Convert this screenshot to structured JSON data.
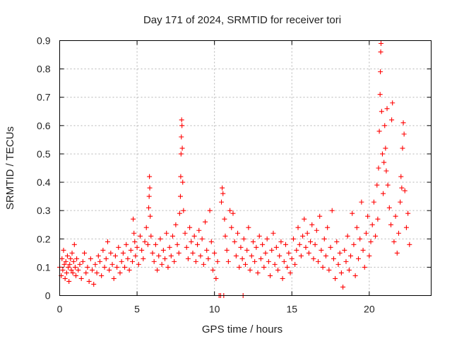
{
  "chart_data": {
    "type": "scatter",
    "title": "Day 171 of 2024, SRMTID for receiver tori",
    "xlabel": "GPS time / hours",
    "ylabel": "SRMTID / TECUs",
    "xlim": [
      0,
      24
    ],
    "ylim": [
      0,
      0.9
    ],
    "grid": true,
    "marker": "plus",
    "color": "#ff0000",
    "x_ticks": [
      0,
      5,
      10,
      15,
      20
    ],
    "x_tick_labels": [
      "0",
      "5",
      "10",
      "15",
      "20"
    ],
    "y_ticks": [
      0,
      0.1,
      0.2,
      0.3,
      0.4,
      0.5,
      0.6,
      0.7,
      0.8,
      0.9
    ],
    "y_tick_labels": [
      "0",
      "0.1",
      "0.2",
      "0.3",
      "0.4",
      "0.5",
      "0.6",
      "0.7",
      "0.8",
      "0.9"
    ],
    "series": [
      {
        "name": "SRMTID",
        "points": [
          [
            0.0,
            0.1
          ],
          [
            0.1,
            0.07
          ],
          [
            0.15,
            0.13
          ],
          [
            0.2,
            0.09
          ],
          [
            0.25,
            0.16
          ],
          [
            0.3,
            0.11
          ],
          [
            0.35,
            0.06
          ],
          [
            0.4,
            0.12
          ],
          [
            0.45,
            0.08
          ],
          [
            0.5,
            0.14
          ],
          [
            0.55,
            0.1
          ],
          [
            0.6,
            0.05
          ],
          [
            0.65,
            0.11
          ],
          [
            0.7,
            0.13
          ],
          [
            0.75,
            0.09
          ],
          [
            0.8,
            0.15
          ],
          [
            0.85,
            0.08
          ],
          [
            0.9,
            0.12
          ],
          [
            0.95,
            0.18
          ],
          [
            1.0,
            0.1
          ],
          [
            1.05,
            0.07
          ],
          [
            1.1,
            0.13
          ],
          [
            1.2,
            0.09
          ],
          [
            1.3,
            0.11
          ],
          [
            1.4,
            0.06
          ],
          [
            1.5,
            0.12
          ],
          [
            1.6,
            0.15
          ],
          [
            1.7,
            0.08
          ],
          [
            1.8,
            0.1
          ],
          [
            1.9,
            0.05
          ],
          [
            2.0,
            0.13
          ],
          [
            2.1,
            0.09
          ],
          [
            2.2,
            0.04
          ],
          [
            2.3,
            0.11
          ],
          [
            2.4,
            0.08
          ],
          [
            2.5,
            0.14
          ],
          [
            2.6,
            0.12
          ],
          [
            2.7,
            0.07
          ],
          [
            2.8,
            0.16
          ],
          [
            2.9,
            0.1
          ],
          [
            3.0,
            0.13
          ],
          [
            3.1,
            0.19
          ],
          [
            3.2,
            0.09
          ],
          [
            3.3,
            0.15
          ],
          [
            3.4,
            0.11
          ],
          [
            3.5,
            0.06
          ],
          [
            3.6,
            0.14
          ],
          [
            3.7,
            0.1
          ],
          [
            3.8,
            0.17
          ],
          [
            3.9,
            0.08
          ],
          [
            4.0,
            0.12
          ],
          [
            4.1,
            0.15
          ],
          [
            4.2,
            0.1
          ],
          [
            4.3,
            0.18
          ],
          [
            4.4,
            0.13
          ],
          [
            4.5,
            0.09
          ],
          [
            4.6,
            0.16
          ],
          [
            4.7,
            0.12
          ],
          [
            4.75,
            0.27
          ],
          [
            4.8,
            0.22
          ],
          [
            4.85,
            0.19
          ],
          [
            4.9,
            0.14
          ],
          [
            5.0,
            0.17
          ],
          [
            5.1,
            0.11
          ],
          [
            5.2,
            0.21
          ],
          [
            5.3,
            0.16
          ],
          [
            5.4,
            0.13
          ],
          [
            5.5,
            0.19
          ],
          [
            5.6,
            0.24
          ],
          [
            5.7,
            0.18
          ],
          [
            5.75,
            0.31
          ],
          [
            5.78,
            0.35
          ],
          [
            5.8,
            0.42
          ],
          [
            5.82,
            0.38
          ],
          [
            5.85,
            0.28
          ],
          [
            5.9,
            0.21
          ],
          [
            6.0,
            0.15
          ],
          [
            6.1,
            0.12
          ],
          [
            6.2,
            0.18
          ],
          [
            6.3,
            0.09
          ],
          [
            6.4,
            0.14
          ],
          [
            6.5,
            0.2
          ],
          [
            6.6,
            0.11
          ],
          [
            6.7,
            0.16
          ],
          [
            6.8,
            0.13
          ],
          [
            6.9,
            0.22
          ],
          [
            7.0,
            0.1
          ],
          [
            7.1,
            0.17
          ],
          [
            7.2,
            0.14
          ],
          [
            7.3,
            0.21
          ],
          [
            7.4,
            0.12
          ],
          [
            7.5,
            0.25
          ],
          [
            7.6,
            0.18
          ],
          [
            7.7,
            0.15
          ],
          [
            7.75,
            0.29
          ],
          [
            7.8,
            0.35
          ],
          [
            7.82,
            0.42
          ],
          [
            7.84,
            0.5
          ],
          [
            7.86,
            0.56
          ],
          [
            7.88,
            0.62
          ],
          [
            7.9,
            0.6
          ],
          [
            7.92,
            0.52
          ],
          [
            7.95,
            0.4
          ],
          [
            8.0,
            0.3
          ],
          [
            8.1,
            0.22
          ],
          [
            8.2,
            0.17
          ],
          [
            8.3,
            0.13
          ],
          [
            8.4,
            0.24
          ],
          [
            8.5,
            0.19
          ],
          [
            8.6,
            0.15
          ],
          [
            8.7,
            0.21
          ],
          [
            8.8,
            0.12
          ],
          [
            8.9,
            0.18
          ],
          [
            9.0,
            0.23
          ],
          [
            9.1,
            0.14
          ],
          [
            9.2,
            0.2
          ],
          [
            9.3,
            0.11
          ],
          [
            9.4,
            0.26
          ],
          [
            9.5,
            0.16
          ],
          [
            9.6,
            0.13
          ],
          [
            9.7,
            0.3
          ],
          [
            9.8,
            0.19
          ],
          [
            9.9,
            0.09
          ],
          [
            10.0,
            0.15
          ],
          [
            10.1,
            0.06
          ],
          [
            10.2,
            0.12
          ],
          [
            10.3,
            0.0
          ],
          [
            10.4,
            0.0
          ],
          [
            10.45,
            0.33
          ],
          [
            10.5,
            0.38
          ],
          [
            10.55,
            0.36
          ],
          [
            10.6,
            0.0
          ],
          [
            10.65,
            0.27
          ],
          [
            10.7,
            0.21
          ],
          [
            10.8,
            0.16
          ],
          [
            10.9,
            0.12
          ],
          [
            11.0,
            0.3
          ],
          [
            11.1,
            0.24
          ],
          [
            11.2,
            0.29
          ],
          [
            11.3,
            0.19
          ],
          [
            11.4,
            0.14
          ],
          [
            11.5,
            0.22
          ],
          [
            11.6,
            0.1
          ],
          [
            11.7,
            0.17
          ],
          [
            11.8,
            0.13
          ],
          [
            11.85,
            0.0
          ],
          [
            11.9,
            0.2
          ],
          [
            12.0,
            0.11
          ],
          [
            12.1,
            0.16
          ],
          [
            12.2,
            0.24
          ],
          [
            12.3,
            0.09
          ],
          [
            12.4,
            0.14
          ],
          [
            12.5,
            0.19
          ],
          [
            12.6,
            0.12
          ],
          [
            12.7,
            0.17
          ],
          [
            12.8,
            0.08
          ],
          [
            12.9,
            0.21
          ],
          [
            13.0,
            0.13
          ],
          [
            13.1,
            0.18
          ],
          [
            13.2,
            0.1
          ],
          [
            13.3,
            0.15
          ],
          [
            13.4,
            0.2
          ],
          [
            13.5,
            0.12
          ],
          [
            13.6,
            0.07
          ],
          [
            13.7,
            0.16
          ],
          [
            13.8,
            0.22
          ],
          [
            13.9,
            0.11
          ],
          [
            14.0,
            0.17
          ],
          [
            14.1,
            0.09
          ],
          [
            14.2,
            0.14
          ],
          [
            14.3,
            0.19
          ],
          [
            14.4,
            0.06
          ],
          [
            14.5,
            0.12
          ],
          [
            14.6,
            0.18
          ],
          [
            14.7,
            0.1
          ],
          [
            14.8,
            0.15
          ],
          [
            14.9,
            0.08
          ],
          [
            15.0,
            0.13
          ],
          [
            15.1,
            0.2
          ],
          [
            15.2,
            0.11
          ],
          [
            15.3,
            0.16
          ],
          [
            15.4,
            0.24
          ],
          [
            15.5,
            0.18
          ],
          [
            15.6,
            0.14
          ],
          [
            15.7,
            0.21
          ],
          [
            15.8,
            0.27
          ],
          [
            15.9,
            0.17
          ],
          [
            16.0,
            0.22
          ],
          [
            16.1,
            0.15
          ],
          [
            16.2,
            0.19
          ],
          [
            16.3,
            0.25
          ],
          [
            16.4,
            0.13
          ],
          [
            16.5,
            0.18
          ],
          [
            16.6,
            0.23
          ],
          [
            16.7,
            0.12
          ],
          [
            16.8,
            0.28
          ],
          [
            16.9,
            0.16
          ],
          [
            17.0,
            0.1
          ],
          [
            17.1,
            0.2
          ],
          [
            17.2,
            0.14
          ],
          [
            17.3,
            0.24
          ],
          [
            17.4,
            0.09
          ],
          [
            17.5,
            0.17
          ],
          [
            17.6,
            0.3
          ],
          [
            17.7,
            0.13
          ],
          [
            17.8,
            0.06
          ],
          [
            17.9,
            0.19
          ],
          [
            18.0,
            0.11
          ],
          [
            18.1,
            0.15
          ],
          [
            18.2,
            0.08
          ],
          [
            18.3,
            0.03
          ],
          [
            18.4,
            0.16
          ],
          [
            18.5,
            0.12
          ],
          [
            18.6,
            0.21
          ],
          [
            18.7,
            0.09
          ],
          [
            18.8,
            0.14
          ],
          [
            18.9,
            0.29
          ],
          [
            19.0,
            0.18
          ],
          [
            19.1,
            0.07
          ],
          [
            19.2,
            0.24
          ],
          [
            19.3,
            0.13
          ],
          [
            19.4,
            0.2
          ],
          [
            19.5,
            0.33
          ],
          [
            19.6,
            0.16
          ],
          [
            19.7,
            0.1
          ],
          [
            19.8,
            0.22
          ],
          [
            19.9,
            0.28
          ],
          [
            20.0,
            0.14
          ],
          [
            20.1,
            0.19
          ],
          [
            20.2,
            0.25
          ],
          [
            20.3,
            0.33
          ],
          [
            20.4,
            0.21
          ],
          [
            20.5,
            0.39
          ],
          [
            20.55,
            0.27
          ],
          [
            20.6,
            0.45
          ],
          [
            20.65,
            0.58
          ],
          [
            20.7,
            0.71
          ],
          [
            20.72,
            0.79
          ],
          [
            20.74,
            0.86
          ],
          [
            20.76,
            0.89
          ],
          [
            20.8,
            0.65
          ],
          [
            20.85,
            0.5
          ],
          [
            20.9,
            0.36
          ],
          [
            20.95,
            0.47
          ],
          [
            21.0,
            0.6
          ],
          [
            21.05,
            0.52
          ],
          [
            21.1,
            0.44
          ],
          [
            21.15,
            0.66
          ],
          [
            21.2,
            0.39
          ],
          [
            21.3,
            0.31
          ],
          [
            21.4,
            0.25
          ],
          [
            21.45,
            0.62
          ],
          [
            21.5,
            0.68
          ],
          [
            21.6,
            0.19
          ],
          [
            21.7,
            0.28
          ],
          [
            21.8,
            0.15
          ],
          [
            21.9,
            0.22
          ],
          [
            22.0,
            0.33
          ],
          [
            22.05,
            0.42
          ],
          [
            22.1,
            0.38
          ],
          [
            22.15,
            0.52
          ],
          [
            22.2,
            0.61
          ],
          [
            22.25,
            0.57
          ],
          [
            22.3,
            0.37
          ],
          [
            22.4,
            0.24
          ],
          [
            22.5,
            0.29
          ],
          [
            22.6,
            0.18
          ]
        ]
      }
    ]
  }
}
